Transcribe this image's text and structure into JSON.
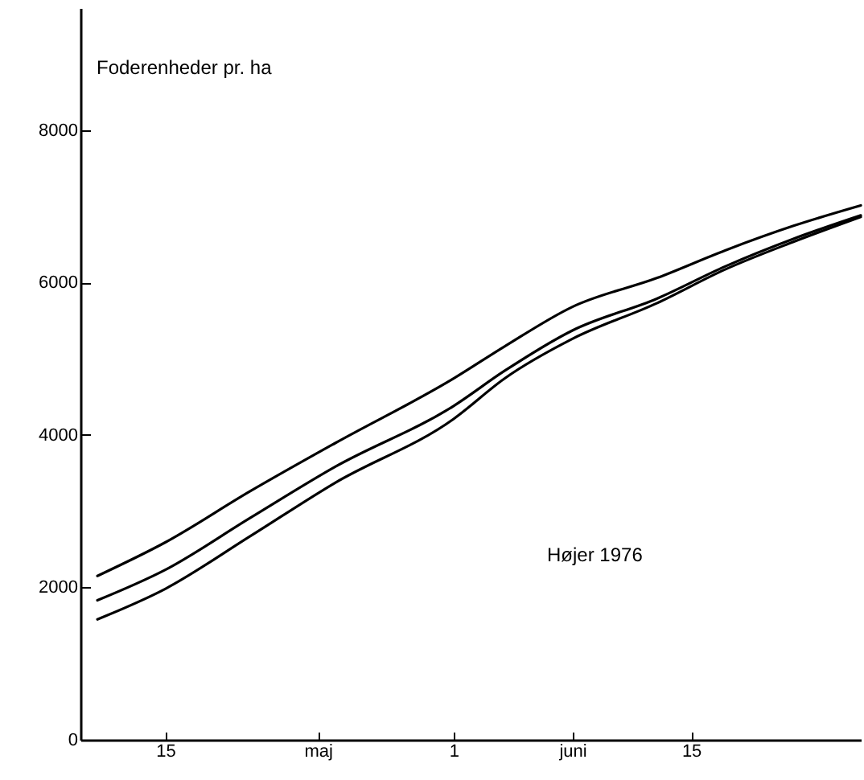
{
  "chart_data": {
    "type": "line",
    "ylabel": "Foderenheder pr. ha",
    "x": [
      "--05-11",
      "--05-15",
      "--05-20",
      "--05-25",
      "--06-01",
      "--06-04",
      "--06-08",
      "--06-13",
      "--06-17",
      "--06-21",
      "--06-25"
    ],
    "series": [
      {
        "color": "#000000",
        "values": [
          2150,
          2590,
          3260,
          3890,
          4740,
          5160,
          5680,
          6060,
          6420,
          6740,
          7010
        ]
      },
      {
        "color": "#000000",
        "values": [
          1830,
          2230,
          2910,
          3580,
          4380,
          4840,
          5370,
          5790,
          6210,
          6570,
          6880
        ]
      },
      {
        "color": "#000000",
        "values": [
          1580,
          1980,
          2670,
          3370,
          4210,
          4740,
          5260,
          5730,
          6170,
          6530,
          6860
        ]
      }
    ],
    "xlim": [
      "--05-10",
      "--06-25"
    ],
    "xticks": [
      {
        "value": "--05-15",
        "label": "15"
      },
      {
        "value": "--05-24",
        "label": "maj"
      },
      {
        "value": "--06-01",
        "label": "1"
      },
      {
        "value": "--06-08",
        "label": "juni"
      },
      {
        "value": "--06-15",
        "label": "15"
      }
    ],
    "ylim": [
      0,
      9600
    ],
    "yticks": [
      0,
      2000,
      4000,
      6000,
      8000
    ],
    "annotations": [
      "Højer 1976"
    ],
    "grid": false,
    "marker": "none",
    "line_style": "solid"
  }
}
